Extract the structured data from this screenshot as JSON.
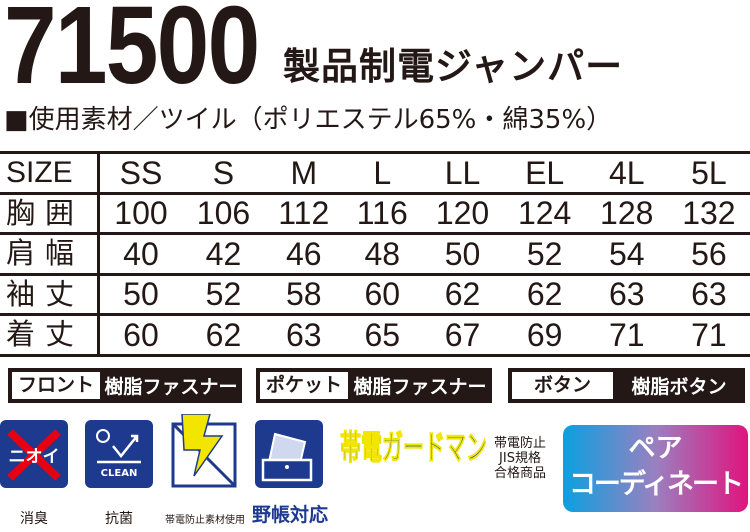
{
  "product_number": "71500",
  "product_name": "製品制電ジャンパー",
  "material": "■使用素材／ツイル（ポリエステル65%・綿35%）",
  "size_table": {
    "header": [
      "SIZE",
      "SS",
      "S",
      "M",
      "L",
      "LL",
      "EL",
      "4L",
      "5L"
    ],
    "rows": [
      [
        "胸囲",
        "100",
        "106",
        "112",
        "116",
        "120",
        "124",
        "128",
        "132"
      ],
      [
        "肩幅",
        "40",
        "42",
        "46",
        "48",
        "50",
        "52",
        "54",
        "56"
      ],
      [
        "袖丈",
        "50",
        "52",
        "58",
        "60",
        "62",
        "62",
        "63",
        "63"
      ],
      [
        "着丈",
        "60",
        "62",
        "63",
        "65",
        "67",
        "69",
        "71",
        "71"
      ]
    ]
  },
  "specs": [
    {
      "label": "フロント",
      "value": "樹脂ファスナー"
    },
    {
      "label": "ポケット",
      "value": "樹脂ファスナー"
    },
    {
      "label": "ボタン",
      "value": "樹脂ボタン"
    }
  ],
  "features": {
    "deodorant": {
      "icon_text": "ニオイ",
      "caption": "消臭",
      "icon": "no-odor-icon"
    },
    "antibacterial": {
      "icon_text": "CLEAN",
      "caption": "抗菌",
      "icon": "clean-icon"
    },
    "antistatic": {
      "caption": "帯電防止素材使用",
      "icon": "lightning-icon"
    },
    "notebook": {
      "caption": "野帳対応",
      "icon": "notebook-pocket-icon"
    },
    "guardman": {
      "logo_text": "帯電ガードマン",
      "note": [
        "帯電防止",
        "JIS規格",
        "合格商品"
      ]
    },
    "pair": {
      "line1": "ペア",
      "line2": "コーディネート"
    }
  },
  "colors": {
    "text": "#231815",
    "icon_blue": "#1d3a8f",
    "lightning_yellow": "#f2e600",
    "cross_red": "#e60012"
  }
}
